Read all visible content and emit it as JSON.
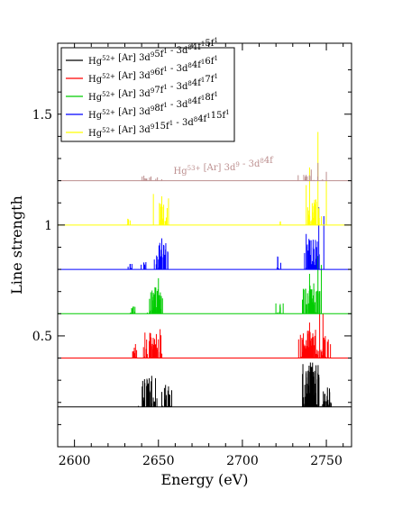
{
  "chart_data": {
    "type": "line",
    "title": "",
    "xlabel": "Energy (eV)",
    "ylabel": "Line strength",
    "xlim": [
      2590,
      2765
    ],
    "ylim": [
      0.0,
      1.82
    ],
    "xticks": [
      "2600",
      "2650",
      "2700",
      "2750"
    ],
    "xtick_values": [
      2600,
      2650,
      2700,
      2750
    ],
    "yticks": [
      "0.5",
      "1",
      "1.5"
    ],
    "ytick_values": [
      0.5,
      1.0,
      1.5
    ],
    "grid": false,
    "legend_position": "top-left",
    "legend": [
      {
        "prefix": "Hg",
        "sup1": "52+",
        "text": " [Ar] 3d",
        "sup2": "9",
        "text2": "5f",
        "sup3": "1",
        "text3": " - 3d",
        "sup4": "8",
        "text4": "4f",
        "sup5": "1",
        "text5": "5f",
        "sup6": "1",
        "color": "#000000"
      },
      {
        "prefix": "Hg",
        "sup1": "52+",
        "text": " [Ar] 3d",
        "sup2": "9",
        "text2": "6f",
        "sup3": "1",
        "text3": " - 3d",
        "sup4": "8",
        "text4": "4f",
        "sup5": "1",
        "text5": "6f",
        "sup6": "1",
        "color": "#ff0000"
      },
      {
        "prefix": "Hg",
        "sup1": "52+",
        "text": " [Ar] 3d",
        "sup2": "9",
        "text2": "7f",
        "sup3": "1",
        "text3": " - 3d",
        "sup4": "8",
        "text4": "4f",
        "sup5": "1",
        "text5": "7f",
        "sup6": "1",
        "color": "#00cc00"
      },
      {
        "prefix": "Hg",
        "sup1": "52+",
        "text": " [Ar] 3d",
        "sup2": "9",
        "text2": "8f",
        "sup3": "1",
        "text3": " - 3d",
        "sup4": "8",
        "text4": "4f",
        "sup5": "1",
        "text5": "8f",
        "sup6": "1",
        "color": "#0000ff"
      },
      {
        "prefix": "Hg",
        "sup1": "52+",
        "text": " [Ar] 3d",
        "sup2": "9",
        "text2": "15f",
        "sup3": "1",
        "text3": " - 3d",
        "sup4": "8",
        "text4": "4f",
        "sup5": "1",
        "text5": "15f",
        "sup6": "1",
        "color": "#ffff00"
      }
    ],
    "annotation": {
      "prefix": "Hg",
      "sup1": "53+",
      "text": " [Ar] 3d",
      "sup2": "9",
      "text3": " - 3d",
      "sup4": "8",
      "text4": "4f",
      "color": "#bc8f8f"
    },
    "series": [
      {
        "name": "Hg52+ [Ar] 3d9 5f1 - 3d8 4f1 5f1",
        "color": "#000000",
        "baseline": 0.18,
        "clusters": [
          {
            "center": 2644,
            "width": 7,
            "amp": 0.13,
            "n": 60
          },
          {
            "center": 2655,
            "width": 4,
            "amp": 0.1,
            "n": 25
          },
          {
            "center": 2741,
            "width": 7,
            "amp": 0.2,
            "n": 70
          },
          {
            "center": 2750,
            "width": 4,
            "amp": 0.1,
            "n": 25
          }
        ],
        "peaks": [
          {
            "x": 2740.5,
            "h": 0.2
          },
          {
            "x": 2741.5,
            "h": 0.18
          },
          {
            "x": 2738.0,
            "h": 0.16
          },
          {
            "x": 2646.0,
            "h": 0.14
          }
        ]
      },
      {
        "name": "Hg52+ [Ar] 3d9 6f1 - 3d8 4f1 6f1",
        "color": "#ff0000",
        "baseline": 0.4,
        "clusters": [
          {
            "center": 2636,
            "width": 3,
            "amp": 0.07,
            "n": 15
          },
          {
            "center": 2647,
            "width": 6,
            "amp": 0.12,
            "n": 55
          },
          {
            "center": 2740,
            "width": 7,
            "amp": 0.14,
            "n": 65
          },
          {
            "center": 2749,
            "width": 4,
            "amp": 0.1,
            "n": 25
          }
        ],
        "peaks": [
          {
            "x": 2746.0,
            "h": 0.24
          },
          {
            "x": 2748.0,
            "h": 0.2
          },
          {
            "x": 2740.0,
            "h": 0.16
          },
          {
            "x": 2651.0,
            "h": 0.13
          }
        ]
      },
      {
        "name": "Hg52+ [Ar] 3d9 7f1 - 3d8 4f1 7f1",
        "color": "#00cc00",
        "baseline": 0.6,
        "clusters": [
          {
            "center": 2634,
            "width": 3,
            "amp": 0.05,
            "n": 12
          },
          {
            "center": 2648,
            "width": 6,
            "amp": 0.12,
            "n": 50
          },
          {
            "center": 2722,
            "width": 3,
            "amp": 0.05,
            "n": 12
          },
          {
            "center": 2741,
            "width": 7,
            "amp": 0.14,
            "n": 60
          }
        ],
        "peaks": [
          {
            "x": 2745.0,
            "h": 0.26
          },
          {
            "x": 2747.0,
            "h": 0.22
          },
          {
            "x": 2650.0,
            "h": 0.16
          },
          {
            "x": 2740.0,
            "h": 0.18
          }
        ]
      },
      {
        "name": "Hg52+ [Ar] 3d9 8f1 - 3d8 4f1 8f1",
        "color": "#0000ff",
        "baseline": 0.8,
        "clusters": [
          {
            "center": 2633,
            "width": 2,
            "amp": 0.05,
            "n": 8
          },
          {
            "center": 2642,
            "width": 3,
            "amp": 0.04,
            "n": 10
          },
          {
            "center": 2652,
            "width": 5,
            "amp": 0.12,
            "n": 40
          },
          {
            "center": 2722,
            "width": 2,
            "amp": 0.06,
            "n": 8
          },
          {
            "center": 2741,
            "width": 6,
            "amp": 0.14,
            "n": 50
          }
        ],
        "peaks": [
          {
            "x": 2745.5,
            "h": 0.28
          },
          {
            "x": 2748.5,
            "h": 0.24
          },
          {
            "x": 2652.0,
            "h": 0.14
          },
          {
            "x": 2738.0,
            "h": 0.16
          }
        ]
      },
      {
        "name": "Hg52+ [Ar] 3d9 15f1 - 3d8 4f1 15f1",
        "color": "#ffff00",
        "baseline": 1.0,
        "clusters": [
          {
            "center": 2632,
            "width": 2,
            "amp": 0.03,
            "n": 6
          },
          {
            "center": 2652,
            "width": 4,
            "amp": 0.1,
            "n": 20
          },
          {
            "center": 2722,
            "width": 2,
            "amp": 0.04,
            "n": 6
          },
          {
            "center": 2742,
            "width": 6,
            "amp": 0.12,
            "n": 30
          }
        ],
        "peaks": [
          {
            "x": 2745.0,
            "h": 0.42
          },
          {
            "x": 2740.0,
            "h": 0.26
          },
          {
            "x": 2750.0,
            "h": 0.2
          },
          {
            "x": 2647.0,
            "h": 0.14
          },
          {
            "x": 2652.0,
            "h": 0.13
          },
          {
            "x": 2656.0,
            "h": 0.12
          },
          {
            "x": 2738.0,
            "h": 0.18
          }
        ]
      },
      {
        "name": "Hg53+ [Ar] 3d9 - 3d8 4f1",
        "color": "#bc8f8f",
        "baseline": 1.2,
        "clusters": [
          {
            "center": 2643,
            "width": 12,
            "amp": 0.03,
            "n": 14
          },
          {
            "center": 2740,
            "width": 10,
            "amp": 0.03,
            "n": 16
          }
        ],
        "peaks": [
          {
            "x": 2745.0,
            "h": 0.08
          },
          {
            "x": 2741.0,
            "h": 0.05
          },
          {
            "x": 2750.0,
            "h": 0.04
          }
        ]
      }
    ]
  }
}
